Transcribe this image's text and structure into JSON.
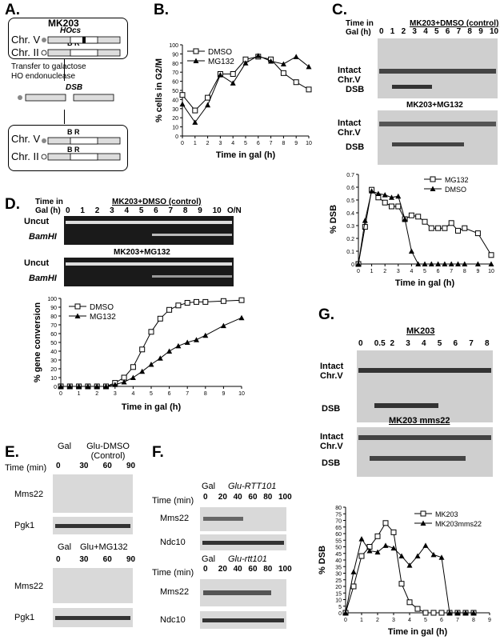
{
  "panels": {
    "A": {
      "label": "A.",
      "strain": "MK203",
      "hocs": "HOcs",
      "chr_v": "Chr. V",
      "chr_ii": "Chr. II",
      "br": "B R",
      "step1": "Transfer to galactose",
      "step2": "HO endonuclease",
      "dsb": "DSB"
    },
    "B": {
      "label": "B."
    },
    "C": {
      "label": "C.",
      "time_header": "Time in Gal (h)",
      "time_points": [
        "0",
        "1",
        "2",
        "3",
        "4",
        "5",
        "6",
        "7",
        "8",
        "9",
        "10"
      ],
      "gel1_title": "MK203+DMSO (control)",
      "gel2_title": "MK203+MG132",
      "intact": "Intact Chr.V",
      "dsb": "DSB"
    },
    "D": {
      "label": "D.",
      "time_header": "Time in Gal (h)",
      "time_points": [
        "0",
        "1",
        "2",
        "3",
        "4",
        "5",
        "6",
        "7",
        "8",
        "9",
        "10",
        "O/N"
      ],
      "gel1_title": "MK203+DMSO (control)",
      "gel2_title": "MK203+MG132",
      "uncut": "Uncut",
      "bamhi": "BamHI"
    },
    "E": {
      "label": "E.",
      "gal": "Gal",
      "cond1": "Glu-DMSO (Control)",
      "cond2": "Glu+MG132",
      "time_label": "Time (min)",
      "times": [
        "0",
        "30",
        "60",
        "90"
      ],
      "prot1": "Mms22",
      "prot2": "Pgk1"
    },
    "F": {
      "label": "F.",
      "gal": "Gal",
      "cond1": "Glu-RTT101",
      "cond2": "Glu-rtt101",
      "time_label": "Time (min)",
      "times": [
        "0",
        "20",
        "40",
        "60",
        "80",
        "100"
      ],
      "prot1": "Mms22",
      "prot2": "Ndc10"
    },
    "G": {
      "label": "G.",
      "gel1_title": "MK203",
      "gel2_title": "MK203 mms22",
      "time_points": [
        "0",
        "0.5",
        "2",
        "3",
        "4",
        "5",
        "6",
        "7",
        "8"
      ],
      "intact": "Intact Chr.V",
      "dsb": "DSB"
    }
  },
  "chart_data": [
    {
      "panel": "B",
      "type": "line",
      "xlabel": "Time in gal (h)",
      "ylabel": "% cells in G2/M",
      "xlim": [
        0,
        10
      ],
      "ylim": [
        0,
        100
      ],
      "xticks": [
        0,
        1,
        2,
        3,
        4,
        5,
        6,
        7,
        8,
        9,
        10
      ],
      "yticks": [
        0,
        10,
        20,
        30,
        40,
        50,
        60,
        70,
        80,
        90,
        100
      ],
      "legend": "top-left",
      "series": [
        {
          "name": "DMSO",
          "marker": "square",
          "x": [
            0,
            1,
            2,
            3,
            4,
            5,
            6,
            7,
            8,
            9,
            10
          ],
          "y": [
            45,
            28,
            42,
            68,
            68,
            84,
            87,
            84,
            69,
            59,
            51
          ]
        },
        {
          "name": "MG132",
          "marker": "triangle",
          "x": [
            0,
            1,
            2,
            3,
            4,
            5,
            6,
            7,
            8,
            9,
            10
          ],
          "y": [
            35,
            15,
            34,
            67,
            58,
            80,
            88,
            82,
            79,
            87,
            76
          ]
        }
      ]
    },
    {
      "panel": "C",
      "type": "line",
      "xlabel": "Time in gal (h)",
      "ylabel": "% DSB",
      "xlim": [
        0,
        10
      ],
      "ylim": [
        0,
        0.7
      ],
      "xticks": [
        0,
        1,
        2,
        3,
        4,
        5,
        6,
        7,
        8,
        9,
        10
      ],
      "yticks": [
        0,
        0.1,
        0.2,
        0.3,
        0.4,
        0.5,
        0.6,
        0.7
      ],
      "legend": "top-right",
      "series": [
        {
          "name": "MG132",
          "marker": "square",
          "x": [
            0,
            0.5,
            1,
            1.5,
            2,
            2.5,
            3,
            3.5,
            4,
            4.5,
            5,
            5.5,
            6,
            6.5,
            7,
            7.5,
            8,
            9,
            10
          ],
          "y": [
            0,
            0.29,
            0.58,
            0.52,
            0.48,
            0.45,
            0.45,
            0.35,
            0.38,
            0.37,
            0.33,
            0.28,
            0.28,
            0.28,
            0.32,
            0.26,
            0.28,
            0.24,
            0.07
          ]
        },
        {
          "name": "DMSO",
          "marker": "triangle",
          "x": [
            0,
            0.5,
            1,
            1.5,
            2,
            2.5,
            3,
            3.5,
            4,
            4.5,
            5,
            5.5,
            6,
            6.5,
            7,
            7.5,
            8,
            9,
            10
          ],
          "y": [
            0,
            0.34,
            0.57,
            0.55,
            0.54,
            0.52,
            0.53,
            0.35,
            0.1,
            0,
            0,
            0,
            0,
            0,
            0,
            0,
            0,
            0,
            0
          ]
        }
      ]
    },
    {
      "panel": "D",
      "type": "line",
      "xlabel": "Time in gal (h)",
      "ylabel": "% gene conversion",
      "xlim": [
        0,
        10
      ],
      "ylim": [
        0,
        100
      ],
      "xticks": [
        0,
        1,
        2,
        3,
        4,
        5,
        6,
        7,
        8,
        9,
        10
      ],
      "yticks": [
        0,
        10,
        20,
        30,
        40,
        50,
        60,
        70,
        80,
        90,
        100
      ],
      "legend": "top-left",
      "series": [
        {
          "name": "DMSO",
          "marker": "square",
          "x": [
            0,
            0.5,
            1,
            1.5,
            2,
            2.5,
            3,
            3.5,
            4,
            4.5,
            5,
            5.5,
            6,
            6.5,
            7,
            7.5,
            8,
            9,
            10
          ],
          "y": [
            0,
            0,
            0,
            0,
            0,
            0,
            4,
            10,
            22,
            42,
            62,
            77,
            87,
            92,
            95,
            96,
            96,
            97,
            98
          ]
        },
        {
          "name": "MG132",
          "marker": "triangle",
          "x": [
            0,
            0.5,
            1,
            1.5,
            2,
            2.5,
            3,
            3.5,
            4,
            4.5,
            5,
            5.5,
            6,
            6.5,
            7,
            7.5,
            8,
            9,
            10
          ],
          "y": [
            0,
            0,
            0,
            0,
            0,
            0,
            2,
            5,
            10,
            17,
            25,
            32,
            40,
            46,
            50,
            53,
            58,
            69,
            78
          ]
        }
      ]
    },
    {
      "panel": "G",
      "type": "line",
      "xlabel": "Time in gal (h)",
      "ylabel": "% DSB",
      "xlim": [
        0,
        9
      ],
      "ylim": [
        0,
        80
      ],
      "xticks": [
        0,
        1,
        2,
        3,
        4,
        5,
        6,
        7,
        8,
        9
      ],
      "yticks": [
        0,
        5,
        10,
        15,
        20,
        25,
        30,
        35,
        40,
        45,
        50,
        55,
        60,
        65,
        70,
        75,
        80
      ],
      "legend": "top-right",
      "series": [
        {
          "name": "MK203",
          "marker": "square",
          "x": [
            0,
            0.5,
            1,
            1.5,
            2,
            2.5,
            3,
            3.5,
            4,
            4.5,
            5,
            5.5,
            6,
            6.5,
            7,
            7.5,
            8
          ],
          "y": [
            0,
            20,
            43,
            50,
            58,
            68,
            61,
            22,
            8,
            3,
            0,
            0,
            0,
            0,
            0,
            0,
            0
          ]
        },
        {
          "name": "MK203mms22",
          "marker": "triangle",
          "x": [
            0,
            0.5,
            1,
            1.5,
            2,
            2.5,
            3,
            3.5,
            4,
            4.5,
            5,
            5.5,
            6,
            6.5,
            7,
            7.5,
            8
          ],
          "y": [
            0,
            31,
            56,
            47,
            46,
            51,
            49,
            43,
            36,
            43,
            51,
            44,
            42,
            0,
            0,
            0,
            0
          ]
        }
      ]
    }
  ]
}
